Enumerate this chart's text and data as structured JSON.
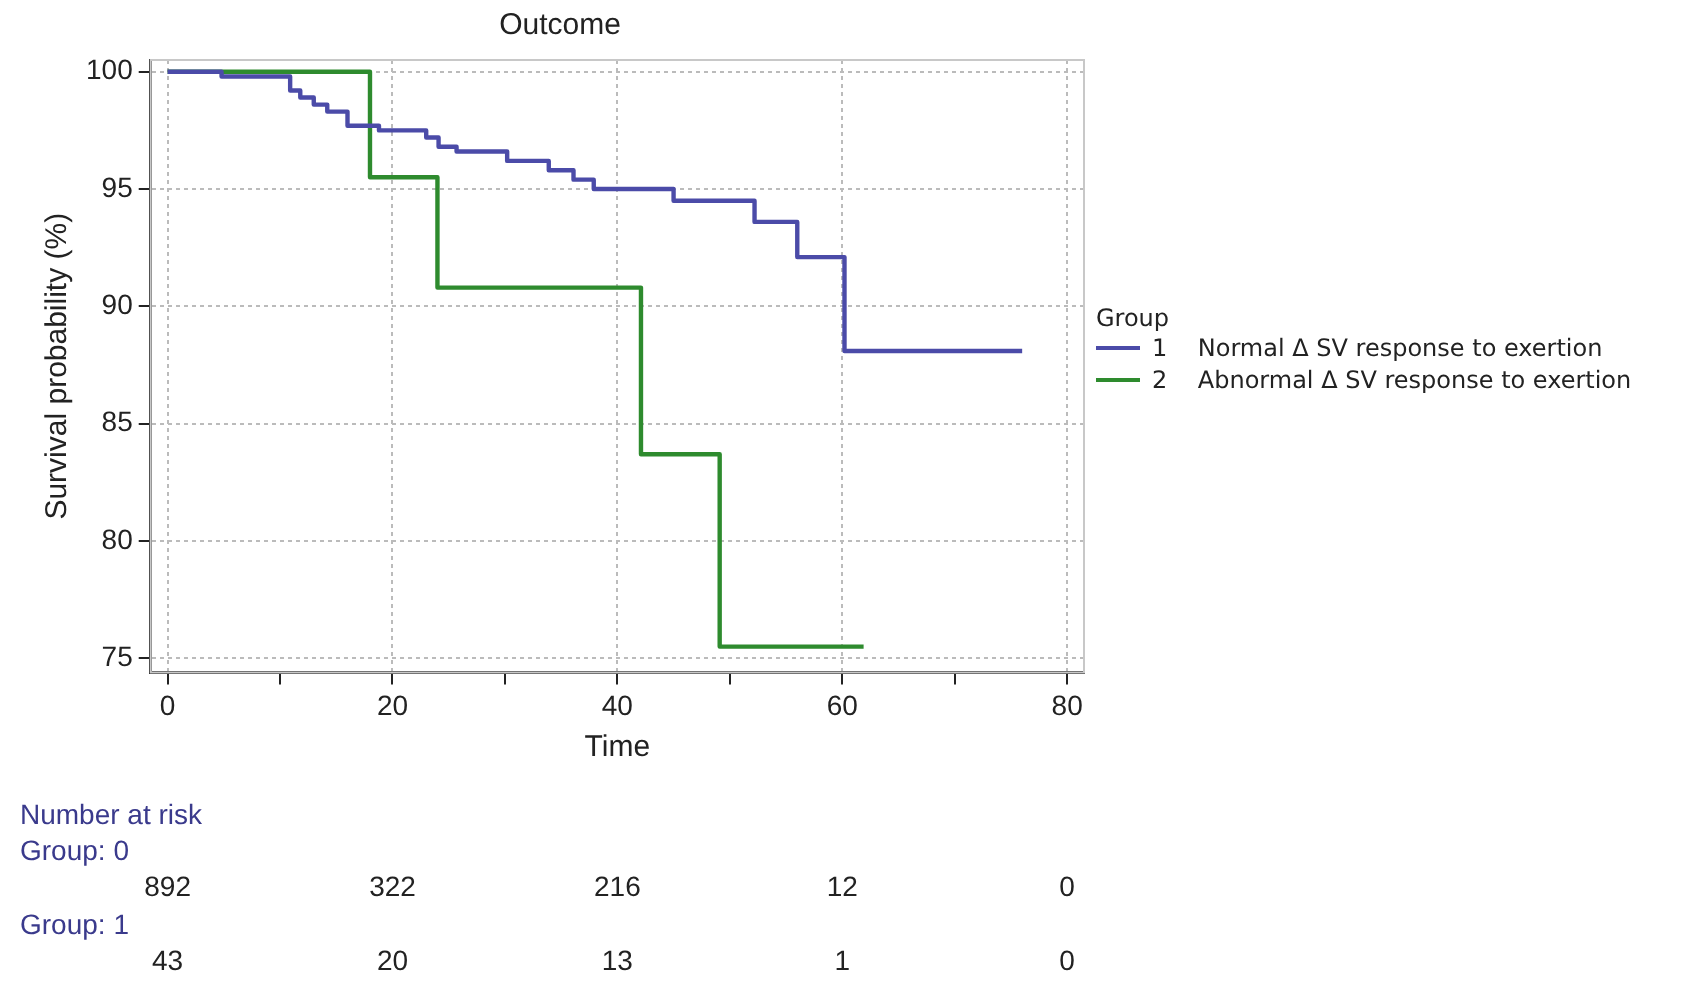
{
  "chart_data": {
    "type": "step",
    "title": "Outcome",
    "xlabel": "Time",
    "ylabel": "Survival probability (%)",
    "legend_title": "Group",
    "legend": "right",
    "xlim": [
      -1.5,
      81.5
    ],
    "ylim": [
      74.4,
      100.5
    ],
    "xticks": [
      0,
      {
        "value": 10,
        "label": null
      },
      20,
      {
        "value": 30,
        "label": null
      },
      40,
      {
        "value": 50,
        "label": null
      },
      60,
      {
        "value": 70,
        "label": null
      },
      80
    ],
    "yticks": [
      75,
      80,
      85,
      90,
      95,
      100
    ],
    "grid": true,
    "marker": "none",
    "series": [
      {
        "name": "1    Normal Δ SV response to exertion",
        "color": "#4b4ba8",
        "x": [
          0,
          4.8,
          10.9,
          11.8,
          13.0,
          14.2,
          16.0,
          18.8,
          23.0,
          24.1,
          25.7,
          30.2,
          33.9,
          36.1,
          37.9,
          45.0,
          52.2,
          56.0,
          60.2,
          76.0
        ],
        "values": [
          100,
          99.8,
          99.2,
          98.9,
          98.6,
          98.3,
          97.7,
          97.5,
          97.2,
          96.8,
          96.6,
          96.2,
          95.8,
          95.4,
          95.0,
          94.5,
          93.6,
          92.1,
          88.1,
          88.1
        ]
      },
      {
        "name": "2    Abnormal Δ SV response to exertion",
        "color": "#2e8b2e",
        "x": [
          0,
          18.0,
          24.0,
          42.1,
          49.1,
          61.9
        ],
        "values": [
          100,
          95.5,
          90.8,
          83.7,
          75.5,
          75.5
        ]
      }
    ],
    "annotations": [
      "Number at risk",
      "Group: 0",
      "892",
      "322",
      "216",
      "12",
      "0",
      "Group: 1",
      "43",
      "20",
      "13",
      "1",
      "0"
    ]
  }
}
